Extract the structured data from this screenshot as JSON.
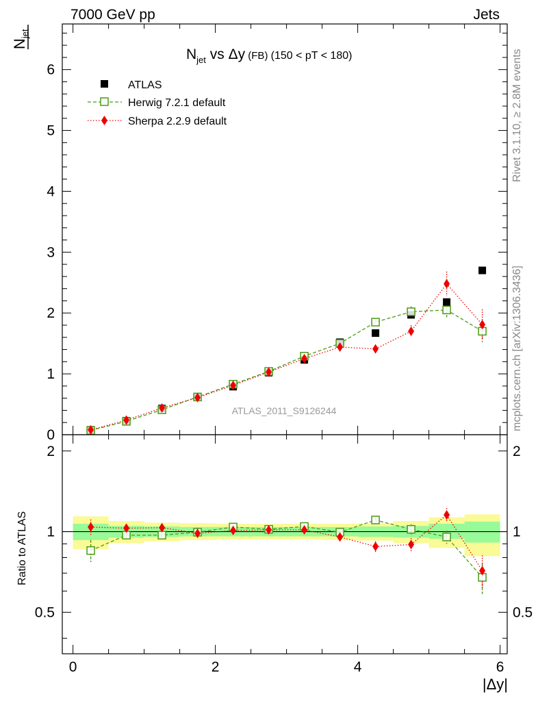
{
  "header": {
    "left": "7000 GeV pp",
    "right": "Jets"
  },
  "side": {
    "rivet": "Rivet 3.1.10, ≥ 2.8M events",
    "mcplots": "mcplots.cern.ch [arXiv:1306.3436]"
  },
  "chart_data": {
    "type": "scatter",
    "title": {
      "main": "N",
      "sub": "jet",
      "rest": " vs Δy",
      "small": " (FB) ",
      "tail": "(150 < pT < 180)"
    },
    "ylabel": {
      "main": "N",
      "sub": "jet"
    },
    "ratio_ylabel": "Ratio to ATLAS",
    "xlabel": "|Δy|",
    "watermark": "ATLAS_2011_S9126244",
    "xlim": [
      -0.15,
      6.1
    ],
    "ylim": [
      0,
      6.75
    ],
    "ratio_ylim": [
      0.35,
      2.3
    ],
    "x_ticks": [
      0,
      2,
      4,
      6
    ],
    "x_tick_labels": [
      "0",
      "2",
      "4",
      "6"
    ],
    "y_ticks": [
      0,
      1,
      2,
      3,
      4,
      5,
      6
    ],
    "y_tick_labels": [
      "0",
      "1",
      "2",
      "3",
      "4",
      "5",
      "6"
    ],
    "ratio_ticks": [
      0.5,
      1,
      2
    ],
    "ratio_tick_labels": [
      "0.5",
      "1",
      "2"
    ],
    "bin_edges": [
      0,
      0.5,
      1.0,
      1.5,
      2.0,
      2.5,
      3.0,
      3.5,
      4.0,
      4.5,
      5.0,
      5.5,
      6.0
    ],
    "x": [
      0.25,
      0.75,
      1.25,
      1.75,
      2.25,
      2.75,
      3.25,
      3.75,
      4.25,
      4.75,
      5.25,
      5.75
    ],
    "series": [
      {
        "name": "ATLAS",
        "marker": "square-filled",
        "color": "#000000",
        "values": [
          0.08,
          0.23,
          0.43,
          0.62,
          0.79,
          1.02,
          1.23,
          1.52,
          1.67,
          1.97,
          2.18,
          2.7
        ]
      },
      {
        "name": "Herwig 7.2.1 default",
        "marker": "square-open",
        "color": "#4a9a14",
        "line": "dashed",
        "values": [
          0.07,
          0.22,
          0.41,
          0.62,
          0.83,
          1.04,
          1.29,
          1.5,
          1.85,
          2.02,
          2.05,
          1.7
        ],
        "errors": [
          0.01,
          0.01,
          0.01,
          0.01,
          0.01,
          0.02,
          0.02,
          0.03,
          0.04,
          0.09,
          0.12,
          0.18
        ],
        "ratio": [
          0.85,
          0.97,
          0.97,
          0.995,
          1.04,
          1.02,
          1.045,
          0.995,
          1.105,
          1.02,
          0.955,
          0.675
        ],
        "ratio_errors": [
          0.08,
          0.03,
          0.02,
          0.02,
          0.02,
          0.02,
          0.02,
          0.02,
          0.025,
          0.045,
          0.055,
          0.09
        ]
      },
      {
        "name": "Sherpa 2.2.9 default",
        "marker": "diamond-filled",
        "color": "#ee0000",
        "line": "dotted",
        "values": [
          0.08,
          0.24,
          0.44,
          0.61,
          0.81,
          1.03,
          1.25,
          1.44,
          1.41,
          1.7,
          2.48,
          1.81
        ],
        "errors": [
          0.01,
          0.01,
          0.01,
          0.01,
          0.01,
          0.02,
          0.02,
          0.03,
          0.06,
          0.1,
          0.2,
          0.25
        ],
        "ratio": [
          1.04,
          1.03,
          1.035,
          0.985,
          1.01,
          1.015,
          1.015,
          0.955,
          0.88,
          0.895,
          1.155,
          0.715
        ],
        "ratio_errors": [
          0.07,
          0.03,
          0.02,
          0.02,
          0.02,
          0.02,
          0.02,
          0.03,
          0.04,
          0.05,
          0.07,
          0.1
        ]
      }
    ],
    "atlas_errors": [
      0.005,
      0.01,
      0.01,
      0.01,
      0.01,
      0.02,
      0.02,
      0.03,
      0.03,
      0.04,
      0.06,
      0.06
    ],
    "band_inner": [
      [
        0.93,
        1.07
      ],
      [
        0.95,
        1.05
      ],
      [
        0.955,
        1.045
      ],
      [
        0.96,
        1.04
      ],
      [
        0.96,
        1.04
      ],
      [
        0.96,
        1.04
      ],
      [
        0.96,
        1.04
      ],
      [
        0.96,
        1.04
      ],
      [
        0.955,
        1.045
      ],
      [
        0.95,
        1.05
      ],
      [
        0.94,
        1.07
      ],
      [
        0.91,
        1.09
      ]
    ],
    "band_outer": [
      [
        0.86,
        1.14
      ],
      [
        0.905,
        1.095
      ],
      [
        0.92,
        1.08
      ],
      [
        0.93,
        1.075
      ],
      [
        0.935,
        1.07
      ],
      [
        0.935,
        1.07
      ],
      [
        0.935,
        1.07
      ],
      [
        0.93,
        1.07
      ],
      [
        0.925,
        1.075
      ],
      [
        0.905,
        1.095
      ],
      [
        0.87,
        1.13
      ],
      [
        0.81,
        1.16
      ]
    ],
    "legend_position": "top-left",
    "colors": {
      "band_inner": "#98fa98",
      "band_outer": "#fafa96",
      "axis": "#000000",
      "watermark": "#999999",
      "side_text": "#888888"
    }
  }
}
